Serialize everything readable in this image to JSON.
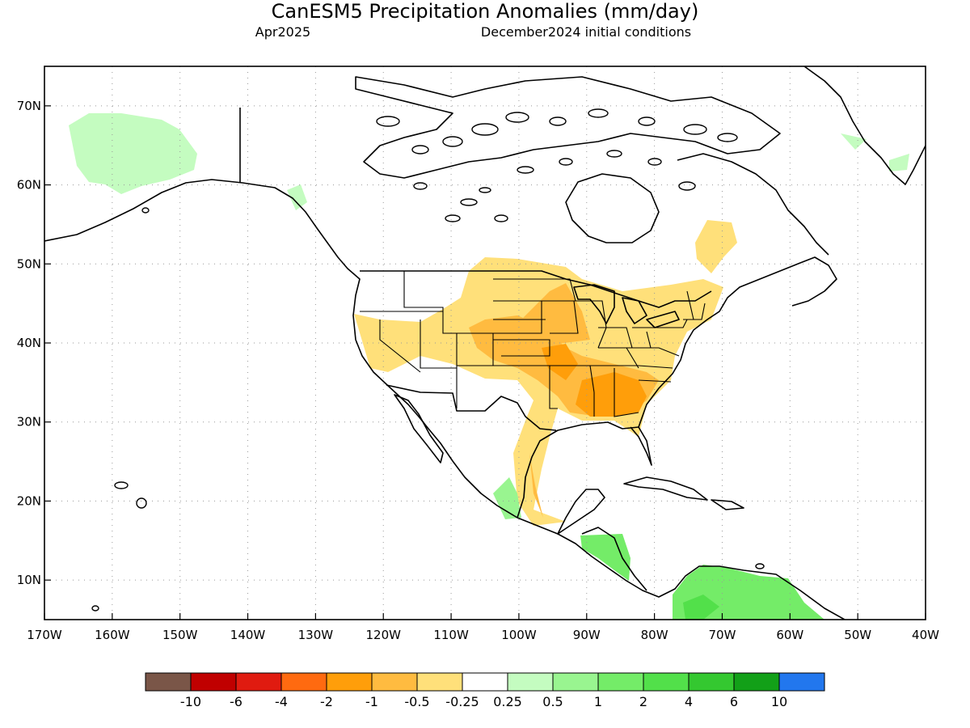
{
  "title": "CanESM5 Precipitation Anomalies (mm/day)",
  "subtitle_left": "Apr2025",
  "subtitle_right": "December2024 initial conditions",
  "map": {
    "lon_min": -170,
    "lon_max": -40,
    "lat_min": 5,
    "lat_max": 75,
    "lat_ticks": [
      {
        "value": 70,
        "label": "70N"
      },
      {
        "value": 60,
        "label": "60N"
      },
      {
        "value": 50,
        "label": "50N"
      },
      {
        "value": 40,
        "label": "40N"
      },
      {
        "value": 30,
        "label": "30N"
      },
      {
        "value": 20,
        "label": "20N"
      },
      {
        "value": 10,
        "label": "10N"
      }
    ],
    "lon_ticks": [
      {
        "value": -170,
        "label": "170W"
      },
      {
        "value": -160,
        "label": "160W"
      },
      {
        "value": -150,
        "label": "150W"
      },
      {
        "value": -140,
        "label": "140W"
      },
      {
        "value": -130,
        "label": "130W"
      },
      {
        "value": -120,
        "label": "120W"
      },
      {
        "value": -110,
        "label": "110W"
      },
      {
        "value": -100,
        "label": "100W"
      },
      {
        "value": -90,
        "label": "90W"
      },
      {
        "value": -80,
        "label": "80W"
      },
      {
        "value": -70,
        "label": "70W"
      },
      {
        "value": -60,
        "label": "60W"
      },
      {
        "value": -50,
        "label": "50W"
      },
      {
        "value": -40,
        "label": "40W"
      }
    ],
    "grid": true
  },
  "legend": {
    "colors": [
      "#7a5648",
      "#c00000",
      "#e01b10",
      "#ff6a10",
      "#ff9e0a",
      "#ffbb40",
      "#ffe07a",
      "#ffffff",
      "#c4fcc0",
      "#99f590",
      "#74ec68",
      "#52e04a",
      "#34c830",
      "#12a018",
      "#2277ee"
    ],
    "labels": [
      "-10",
      "-6",
      "-4",
      "-2",
      "-1",
      "-0.5",
      "-0.25",
      "0.25",
      "0.5",
      "1",
      "2",
      "4",
      "6",
      "10"
    ]
  }
}
